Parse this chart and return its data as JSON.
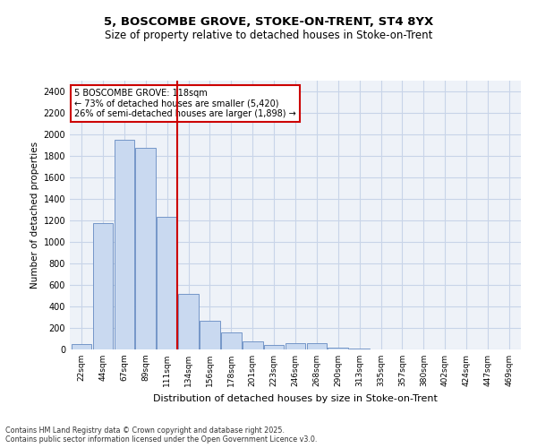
{
  "title_line1": "5, BOSCOMBE GROVE, STOKE-ON-TRENT, ST4 8YX",
  "title_line2": "Size of property relative to detached houses in Stoke-on-Trent",
  "xlabel": "Distribution of detached houses by size in Stoke-on-Trent",
  "ylabel": "Number of detached properties",
  "categories": [
    "22sqm",
    "44sqm",
    "67sqm",
    "89sqm",
    "111sqm",
    "134sqm",
    "156sqm",
    "178sqm",
    "201sqm",
    "223sqm",
    "246sqm",
    "268sqm",
    "290sqm",
    "313sqm",
    "335sqm",
    "357sqm",
    "380sqm",
    "402sqm",
    "424sqm",
    "447sqm",
    "469sqm"
  ],
  "values": [
    50,
    1175,
    1950,
    1875,
    1230,
    520,
    270,
    155,
    75,
    40,
    60,
    55,
    20,
    8,
    3,
    2,
    1,
    1,
    1,
    1,
    1
  ],
  "bar_color": "#c9d9f0",
  "bar_edge_color": "#7496c8",
  "vline_index": 4,
  "vline_color": "#cc0000",
  "annotation_text": "5 BOSCOMBE GROVE: 118sqm\n← 73% of detached houses are smaller (5,420)\n26% of semi-detached houses are larger (1,898) →",
  "annotation_box_color": "#cc0000",
  "ylim": [
    0,
    2500
  ],
  "yticks": [
    0,
    200,
    400,
    600,
    800,
    1000,
    1200,
    1400,
    1600,
    1800,
    2000,
    2200,
    2400
  ],
  "grid_color": "#c8d4e8",
  "background_color": "#eef2f8",
  "footer_line1": "Contains HM Land Registry data © Crown copyright and database right 2025.",
  "footer_line2": "Contains public sector information licensed under the Open Government Licence v3.0."
}
